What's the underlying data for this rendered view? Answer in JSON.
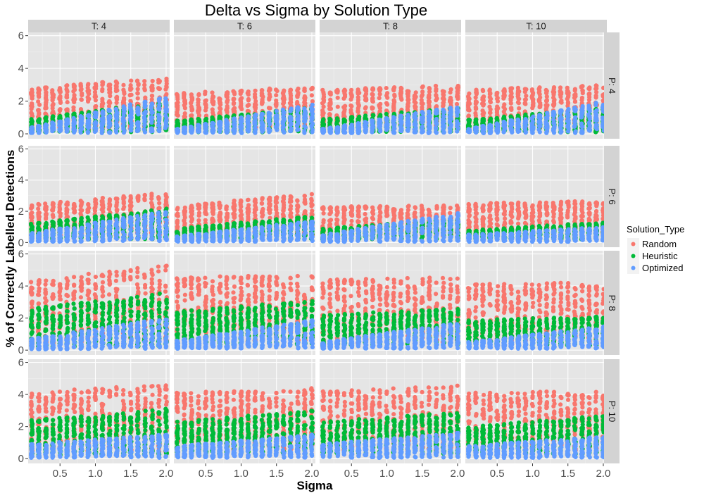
{
  "chart_data": {
    "type": "scatter",
    "title": "Delta vs Sigma by Solution Type",
    "xlabel": "Sigma",
    "ylabel": "% of Correctly Labelled Detections",
    "x_ticks": [
      "0.5",
      "1.0",
      "1.5",
      "2.0"
    ],
    "y_ticks": [
      "0",
      "2",
      "4",
      "6"
    ],
    "xlim": [
      0.05,
      2.05
    ],
    "ylim": [
      -0.3,
      6.2
    ],
    "x_values": [
      0.1,
      0.2,
      0.3,
      0.4,
      0.5,
      0.6,
      0.7,
      0.8,
      0.9,
      1.0,
      1.1,
      1.2,
      1.3,
      1.4,
      1.5,
      1.6,
      1.7,
      1.8,
      1.9,
      2.0
    ],
    "facet_columns": [
      "T: 4",
      "T: 6",
      "T: 8",
      "T: 10"
    ],
    "facet_rows": [
      "P: 4",
      "P: 6",
      "P: 8",
      "P: 10"
    ],
    "legend": {
      "title": "Solution_Type",
      "position": "right"
    },
    "series": [
      {
        "name": "Random",
        "color": "#f8766d",
        "ranges": [
          [
            [
              0.2,
              2.9,
              3.4
            ],
            [
              0.3,
              2.5,
              2.9
            ],
            [
              0.4,
              2.7,
              3.0
            ],
            [
              0.3,
              2.7,
              3.0
            ]
          ],
          [
            [
              0.4,
              2.5,
              3.2
            ],
            [
              0.4,
              2.3,
              3.2
            ],
            [
              0.4,
              2.3,
              2.4
            ],
            [
              0.5,
              2.5,
              2.7
            ]
          ],
          [
            [
              0.4,
              4.4,
              5.3
            ],
            [
              0.5,
              4.5,
              4.8
            ],
            [
              0.4,
              4.4,
              4.6
            ],
            [
              0.5,
              4.1,
              4.3
            ]
          ],
          [
            [
              0.4,
              4.2,
              4.6
            ],
            [
              0.5,
              4.1,
              4.4
            ],
            [
              0.5,
              4.2,
              4.6
            ],
            [
              0.5,
              4.1,
              4.3
            ]
          ]
        ]
      },
      {
        "name": "Heuristic",
        "color": "#00ba38",
        "ranges": [
          [
            [
              0.1,
              0.9,
              2.0
            ],
            [
              0.1,
              0.8,
              1.6
            ],
            [
              0.1,
              0.9,
              1.6
            ],
            [
              0.1,
              0.9,
              1.6
            ]
          ],
          [
            [
              0.2,
              1.2,
              2.2
            ],
            [
              0.2,
              0.9,
              1.7
            ],
            [
              0.2,
              0.9,
              1.5
            ],
            [
              0.2,
              0.8,
              1.3
            ]
          ],
          [
            [
              0.2,
              2.6,
              3.6
            ],
            [
              0.3,
              2.4,
              3.1
            ],
            [
              0.3,
              2.2,
              2.6
            ],
            [
              0.3,
              1.9,
              2.1
            ]
          ],
          [
            [
              0.2,
              2.4,
              3.1
            ],
            [
              0.3,
              2.3,
              3.0
            ],
            [
              0.3,
              2.3,
              2.9
            ],
            [
              0.3,
              2.0,
              2.7
            ]
          ]
        ]
      },
      {
        "name": "Optimized",
        "color": "#619cff",
        "ranges": [
          [
            [
              0.05,
              0.4,
              2.3
            ],
            [
              0.05,
              0.3,
              1.8
            ],
            [
              0.05,
              0.3,
              1.7
            ],
            [
              0.05,
              0.3,
              2.0
            ]
          ],
          [
            [
              0.05,
              0.6,
              2.0
            ],
            [
              0.05,
              0.4,
              1.4
            ],
            [
              0.05,
              0.5,
              1.9
            ],
            [
              0.05,
              0.5,
              1.0
            ]
          ],
          [
            [
              0.05,
              0.7,
              2.0
            ],
            [
              0.1,
              0.6,
              1.9
            ],
            [
              0.1,
              0.5,
              1.7
            ],
            [
              0.1,
              0.5,
              1.5
            ]
          ],
          [
            [
              0.05,
              0.9,
              1.5
            ],
            [
              0.05,
              0.8,
              1.5
            ],
            [
              0.05,
              0.9,
              1.6
            ],
            [
              0.05,
              0.8,
              1.4
            ]
          ]
        ]
      }
    ]
  }
}
